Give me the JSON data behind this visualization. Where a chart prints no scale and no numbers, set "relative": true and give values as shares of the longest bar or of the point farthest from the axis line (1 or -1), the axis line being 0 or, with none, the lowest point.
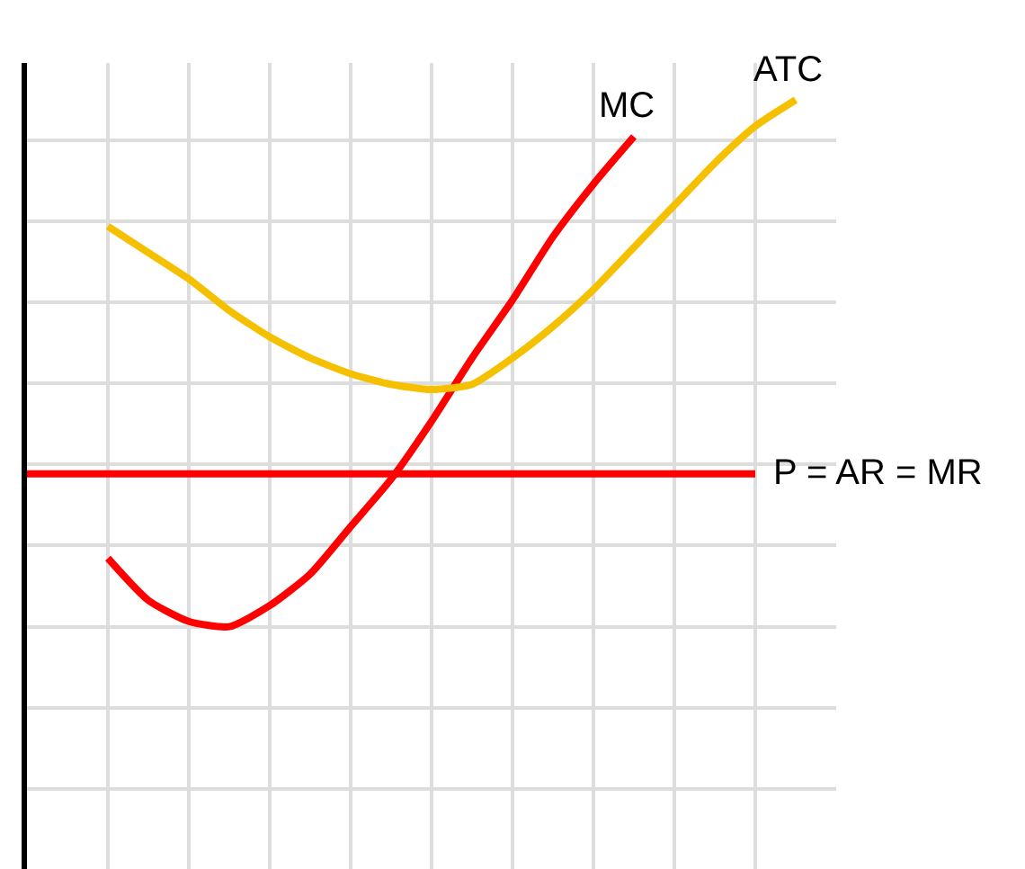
{
  "chart_data": {
    "type": "line",
    "relative": true,
    "grid": true,
    "legend": false,
    "marker": "none",
    "line_style": "solid",
    "categories": [
      null,
      null,
      null,
      null,
      null,
      null,
      null,
      null,
      null,
      null,
      null,
      null,
      null,
      null,
      null,
      null,
      null,
      null,
      null,
      null
    ],
    "series": [
      {
        "name": "MC",
        "color": "#ff0000",
        "values": [
          null,
          null,
          0.13,
          0.05,
          0.01,
          0.0,
          0.04,
          0.1,
          0.19,
          0.28,
          0.39,
          0.51,
          0.62,
          0.74,
          0.84,
          0.93,
          null,
          null,
          null,
          null
        ]
      },
      {
        "name": "ATC",
        "color": "#f5c000",
        "values": [
          null,
          null,
          0.76,
          0.71,
          0.66,
          0.6,
          0.55,
          0.51,
          0.48,
          0.46,
          0.45,
          0.46,
          0.51,
          0.57,
          0.64,
          0.72,
          0.8,
          0.88,
          0.95,
          1.0
        ]
      },
      {
        "name": "P = AR = MR",
        "color": "#ff0000",
        "values": [
          0.29,
          0.29,
          0.29,
          0.29,
          0.29,
          0.29,
          0.29,
          0.29,
          0.29,
          0.29,
          0.29,
          0.29,
          0.29,
          0.29,
          0.29,
          0.29,
          0.29,
          0.29,
          0.29,
          null
        ]
      }
    ]
  }
}
